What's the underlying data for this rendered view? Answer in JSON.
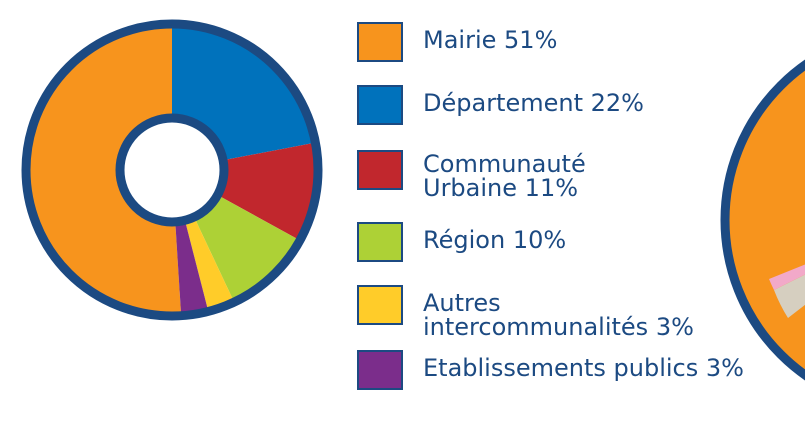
{
  "chart_data": {
    "type": "donut",
    "series": [
      {
        "name": "Mairie",
        "value": 51,
        "value_label": "51%",
        "color": "#f7941d"
      },
      {
        "name": "Département",
        "value": 22,
        "value_label": "22%",
        "color": "#0072bc"
      },
      {
        "name": "Communauté Urbaine",
        "value": 11,
        "value_label": "11%",
        "color": "#c1272d"
      },
      {
        "name": "Région",
        "value": 10,
        "value_label": "10%",
        "color": "#add136"
      },
      {
        "name": "Autres intercommunalités",
        "value": 3,
        "value_label": "3%",
        "color": "#ffcc29"
      },
      {
        "name": "Etablissements publics",
        "value": 3,
        "value_label": "3%",
        "color": "#7b2d8b"
      }
    ]
  }
}
